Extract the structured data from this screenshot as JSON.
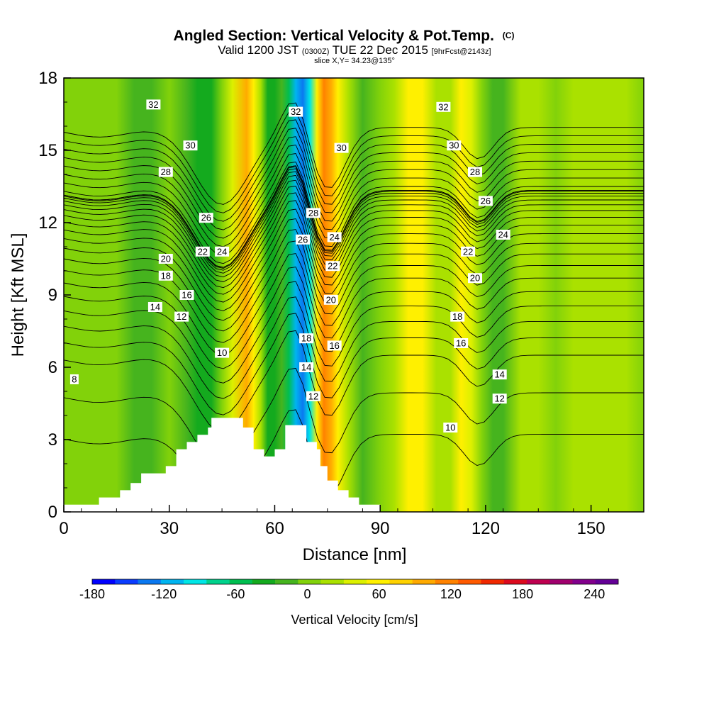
{
  "chart_data": {
    "type": "heatmap",
    "title": {
      "main": "Angled Section: Vertical Velocity & Pot.Temp.",
      "main_suffix": "(C)",
      "valid_prefix": "Valid 1200 JST",
      "valid_utc": "(0300Z)",
      "valid_date": "TUE 22 Dec 2015",
      "forecast": "[9hrFcst@2143z]",
      "slice": "slice X,Y= 34.23@135°"
    },
    "xlabel": "Distance [nm]",
    "ylabel": "Height [Kft MSL]",
    "xlim": [
      0,
      165
    ],
    "ylim": [
      0,
      18
    ],
    "x_ticks": [
      "0",
      "30",
      "60",
      "90",
      "120",
      "150"
    ],
    "x_tick_values": [
      0,
      30,
      60,
      90,
      120,
      150
    ],
    "y_ticks": [
      "0",
      "3",
      "6",
      "9",
      "12",
      "15",
      "18"
    ],
    "y_tick_values": [
      0,
      3,
      6,
      9,
      12,
      15,
      18
    ],
    "colorbar": {
      "label": "Vertical Velocity [cm/s]",
      "min": -180,
      "max": 260,
      "tick_labels": [
        "-180",
        "-120",
        "-60",
        "0",
        "60",
        "120",
        "180",
        "240"
      ],
      "tick_values": [
        -180,
        -120,
        -60,
        0,
        60,
        120,
        180,
        240
      ],
      "colors": [
        "#0000ff",
        "#0a3cff",
        "#0a78f0",
        "#00b4f0",
        "#00e6e6",
        "#00d28c",
        "#00be50",
        "#14aa1e",
        "#46b41e",
        "#82d20a",
        "#aae100",
        "#dcf000",
        "#fff000",
        "#ffd200",
        "#ffaa00",
        "#ff8200",
        "#ff5a00",
        "#f02800",
        "#dc0a1e",
        "#be0050",
        "#a0006e",
        "#82008c",
        "#640096"
      ]
    },
    "velocity_columns": [
      {
        "x": 0,
        "v": 8
      },
      {
        "x": 5,
        "v": 10
      },
      {
        "x": 10,
        "v": 8
      },
      {
        "x": 15,
        "v": -6
      },
      {
        "x": 20,
        "v": -10
      },
      {
        "x": 25,
        "v": -8
      },
      {
        "x": 30,
        "v": 2
      },
      {
        "x": 35,
        "v": -15
      },
      {
        "x": 38,
        "v": -40
      },
      {
        "x": 42,
        "v": -35
      },
      {
        "x": 45,
        "v": -5
      },
      {
        "x": 48,
        "v": 35
      },
      {
        "x": 52,
        "v": 95
      },
      {
        "x": 54,
        "v": 60
      },
      {
        "x": 56,
        "v": 20
      },
      {
        "x": 58,
        "v": -30
      },
      {
        "x": 60,
        "v": -40
      },
      {
        "x": 62,
        "v": -25
      },
      {
        "x": 64,
        "v": -60
      },
      {
        "x": 66,
        "v": -110
      },
      {
        "x": 68,
        "v": -135
      },
      {
        "x": 70,
        "v": -85
      },
      {
        "x": 72,
        "v": 60
      },
      {
        "x": 74,
        "v": 120
      },
      {
        "x": 76,
        "v": 105
      },
      {
        "x": 78,
        "v": 60
      },
      {
        "x": 81,
        "v": 25
      },
      {
        "x": 85,
        "v": -8
      },
      {
        "x": 90,
        "v": 5
      },
      {
        "x": 94,
        "v": 30
      },
      {
        "x": 98,
        "v": 55
      },
      {
        "x": 102,
        "v": 50
      },
      {
        "x": 106,
        "v": 20
      },
      {
        "x": 110,
        "v": 25
      },
      {
        "x": 113,
        "v": 50
      },
      {
        "x": 116,
        "v": 45
      },
      {
        "x": 119,
        "v": 5
      },
      {
        "x": 122,
        "v": -25
      },
      {
        "x": 125,
        "v": -10
      },
      {
        "x": 130,
        "v": 15
      },
      {
        "x": 135,
        "v": 20
      },
      {
        "x": 140,
        "v": 10
      },
      {
        "x": 145,
        "v": 20
      },
      {
        "x": 150,
        "v": 15
      },
      {
        "x": 155,
        "v": 25
      },
      {
        "x": 160,
        "v": 18
      },
      {
        "x": 165,
        "v": 10
      }
    ],
    "terrain": [
      {
        "x": 0,
        "h": 0.3
      },
      {
        "x": 10,
        "h": 0.3
      },
      {
        "x": 10,
        "h": 0.6
      },
      {
        "x": 16,
        "h": 0.6
      },
      {
        "x": 16,
        "h": 0.9
      },
      {
        "x": 19,
        "h": 0.9
      },
      {
        "x": 19,
        "h": 1.2
      },
      {
        "x": 22,
        "h": 1.2
      },
      {
        "x": 22,
        "h": 1.6
      },
      {
        "x": 29,
        "h": 1.6
      },
      {
        "x": 29,
        "h": 1.9
      },
      {
        "x": 32,
        "h": 1.9
      },
      {
        "x": 32,
        "h": 2.6
      },
      {
        "x": 35,
        "h": 2.6
      },
      {
        "x": 35,
        "h": 2.9
      },
      {
        "x": 38,
        "h": 2.9
      },
      {
        "x": 38,
        "h": 3.2
      },
      {
        "x": 41,
        "h": 3.2
      },
      {
        "x": 41,
        "h": 3.5
      },
      {
        "x": 42,
        "h": 3.5
      },
      {
        "x": 42,
        "h": 3.9
      },
      {
        "x": 51,
        "h": 3.9
      },
      {
        "x": 51,
        "h": 3.5
      },
      {
        "x": 54,
        "h": 3.5
      },
      {
        "x": 54,
        "h": 2.6
      },
      {
        "x": 57,
        "h": 2.6
      },
      {
        "x": 57,
        "h": 2.3
      },
      {
        "x": 60,
        "h": 2.3
      },
      {
        "x": 60,
        "h": 2.6
      },
      {
        "x": 63,
        "h": 2.6
      },
      {
        "x": 63,
        "h": 3.6
      },
      {
        "x": 69,
        "h": 3.6
      },
      {
        "x": 69,
        "h": 2.9
      },
      {
        "x": 72,
        "h": 2.9
      },
      {
        "x": 72,
        "h": 2.6
      },
      {
        "x": 73,
        "h": 2.6
      },
      {
        "x": 73,
        "h": 1.9
      },
      {
        "x": 75,
        "h": 1.9
      },
      {
        "x": 75,
        "h": 1.3
      },
      {
        "x": 78,
        "h": 1.3
      },
      {
        "x": 78,
        "h": 0.9
      },
      {
        "x": 81,
        "h": 0.9
      },
      {
        "x": 81,
        "h": 0.6
      },
      {
        "x": 84,
        "h": 0.6
      },
      {
        "x": 84,
        "h": 0.3
      },
      {
        "x": 90,
        "h": 0.3
      },
      {
        "x": 90,
        "h": 0
      },
      {
        "x": 165,
        "h": 0
      }
    ],
    "isentropes_theta": [
      6,
      8,
      10,
      11,
      12,
      13,
      14,
      15,
      16,
      17,
      18,
      19,
      20,
      21,
      22,
      23,
      24,
      25,
      26,
      27,
      28,
      29,
      30,
      31,
      32,
      33,
      34,
      35,
      36,
      37
    ],
    "isentrope_labels": [
      {
        "text": "32",
        "x": 25.5,
        "y": 16.9
      },
      {
        "text": "30",
        "x": 36.0,
        "y": 15.2
      },
      {
        "text": "28",
        "x": 29.0,
        "y": 14.1
      },
      {
        "text": "26",
        "x": 40.5,
        "y": 12.2
      },
      {
        "text": "24",
        "x": 45.0,
        "y": 10.8
      },
      {
        "text": "22",
        "x": 39.5,
        "y": 10.8
      },
      {
        "text": "20",
        "x": 29.0,
        "y": 10.5
      },
      {
        "text": "18",
        "x": 29.0,
        "y": 9.8
      },
      {
        "text": "16",
        "x": 35.0,
        "y": 9.0
      },
      {
        "text": "14",
        "x": 26.0,
        "y": 8.5
      },
      {
        "text": "12",
        "x": 33.5,
        "y": 8.1
      },
      {
        "text": "10",
        "x": 45.0,
        "y": 6.6
      },
      {
        "text": "8",
        "x": 3.0,
        "y": 5.5
      },
      {
        "text": "32",
        "x": 66.0,
        "y": 16.6
      },
      {
        "text": "30",
        "x": 79.0,
        "y": 15.1
      },
      {
        "text": "28",
        "x": 71.0,
        "y": 12.4
      },
      {
        "text": "26",
        "x": 68.0,
        "y": 11.3
      },
      {
        "text": "24",
        "x": 77.0,
        "y": 11.4
      },
      {
        "text": "22",
        "x": 76.5,
        "y": 10.2
      },
      {
        "text": "20",
        "x": 76.0,
        "y": 8.8
      },
      {
        "text": "18",
        "x": 69.0,
        "y": 7.2
      },
      {
        "text": "16",
        "x": 77.0,
        "y": 6.9
      },
      {
        "text": "14",
        "x": 69.0,
        "y": 6.0
      },
      {
        "text": "12",
        "x": 71.0,
        "y": 4.8
      },
      {
        "text": "32",
        "x": 108.0,
        "y": 16.8
      },
      {
        "text": "30",
        "x": 111.0,
        "y": 15.2
      },
      {
        "text": "28",
        "x": 117.0,
        "y": 14.1
      },
      {
        "text": "26",
        "x": 120.0,
        "y": 12.9
      },
      {
        "text": "24",
        "x": 125.0,
        "y": 11.5
      },
      {
        "text": "22",
        "x": 115.0,
        "y": 10.8
      },
      {
        "text": "20",
        "x": 117.0,
        "y": 9.7
      },
      {
        "text": "18",
        "x": 112.0,
        "y": 8.1
      },
      {
        "text": "16",
        "x": 113.0,
        "y": 7.0
      },
      {
        "text": "14",
        "x": 124.0,
        "y": 5.7
      },
      {
        "text": "12",
        "x": 124.0,
        "y": 4.7
      },
      {
        "text": "10",
        "x": 110.0,
        "y": 3.5
      }
    ],
    "grid": false,
    "legend": "colorbar-bottom"
  }
}
